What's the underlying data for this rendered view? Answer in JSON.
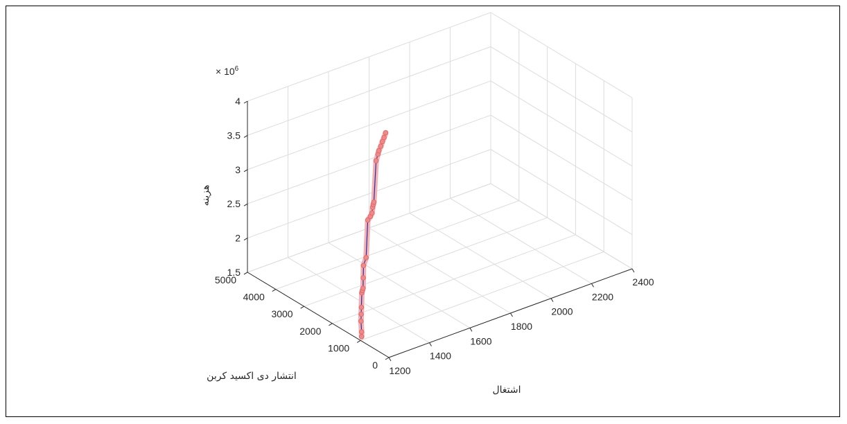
{
  "chart_data": {
    "type": "line3d",
    "multiplier_label": "× 10",
    "multiplier_exp": "6",
    "xlabel": "اشتغال",
    "ylabel": "انتشار دی اکسید کربن",
    "zlabel": "هزینه",
    "xlim": [
      1200,
      2400
    ],
    "ylim": [
      0,
      5000
    ],
    "zlim": [
      1.5,
      4
    ],
    "xticks": [
      1200,
      1400,
      1600,
      1800,
      2000,
      2200,
      2400
    ],
    "yticks": [
      0,
      1000,
      2000,
      3000,
      4000,
      5000
    ],
    "zticks": [
      1.5,
      2,
      2.5,
      3,
      3.5,
      4
    ],
    "xtick_labels": [
      "1200",
      "1400",
      "1600",
      "1800",
      "2000",
      "2200",
      "2400"
    ],
    "ytick_labels": [
      "0",
      "1000",
      "2000",
      "3000",
      "4000",
      "5000"
    ],
    "ztick_labels": [
      "1.5",
      "2",
      "2.5",
      "3",
      "3.5",
      "4"
    ],
    "series": [
      {
        "x": [
          1205,
          1212,
          1230,
          1245,
          1260,
          1290,
          1300,
          1310,
          1325,
          1340,
          1360,
          1375,
          1395,
          1410,
          1420,
          1430,
          1440,
          1455,
          1470,
          1480,
          1495,
          1510,
          1525,
          1540
        ],
        "y": [
          1000,
          1050,
          1200,
          1300,
          1400,
          1600,
          1650,
          1700,
          1800,
          1900,
          1950,
          2000,
          2050,
          2100,
          2150,
          2200,
          2250,
          2280,
          2320,
          2360,
          2400,
          2450,
          2500,
          2550
        ],
        "z": [
          1.55,
          1.6,
          1.7,
          1.76,
          1.82,
          1.95,
          1.96,
          1.97,
          2.08,
          2.22,
          2.3,
          2.82,
          2.84,
          2.86,
          2.92,
          2.94,
          2.95,
          3.53,
          3.6,
          3.63,
          3.67,
          3.71,
          3.74,
          3.78
        ]
      }
    ]
  }
}
